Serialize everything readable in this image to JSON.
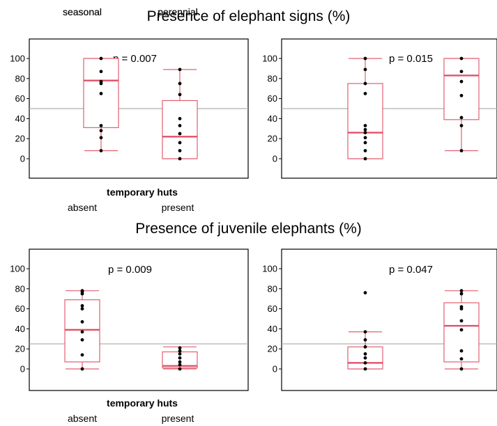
{
  "section_titles": {
    "top": "Presence of elephant signs (%)",
    "bottom": "Presence of juvenile elephants (%)"
  },
  "colors": {
    "box": "#e06070",
    "median": "#e0506a",
    "points": "#000000",
    "frame": "#000000",
    "reference_line": "#b0b0b0"
  },
  "chart_data": [
    {
      "type": "box",
      "group_label": "temporary huts",
      "categories": [
        "absent",
        "present"
      ],
      "p_label": "p = 0.007",
      "yticks": [
        0,
        20,
        40,
        60,
        80,
        100
      ],
      "ylim": [
        -20,
        120
      ],
      "reference_line": 50,
      "boxes": [
        {
          "q1": 31,
          "median": 78,
          "q3": 100,
          "whisker_low": 8,
          "whisker_high": 100,
          "points": [
            8,
            21,
            28,
            33,
            65,
            75,
            77,
            87,
            100
          ]
        },
        {
          "q1": 0,
          "median": 22,
          "q3": 58,
          "whisker_low": 0,
          "whisker_high": 89,
          "points": [
            0,
            8,
            16,
            25,
            33,
            40,
            64,
            75,
            89
          ]
        }
      ]
    },
    {
      "type": "box",
      "group_label": "",
      "categories": [
        "seasonal",
        "perennial"
      ],
      "p_label": "p = 0.015",
      "yticks": [
        0,
        20,
        40,
        60,
        80,
        100
      ],
      "ylim": [
        -20,
        120
      ],
      "reference_line": 50,
      "boxes": [
        {
          "q1": 0,
          "median": 26,
          "q3": 75,
          "whisker_low": 0,
          "whisker_high": 100,
          "points": [
            0,
            8,
            16,
            21,
            26,
            29,
            33,
            65,
            75,
            89,
            100
          ]
        },
        {
          "q1": 39,
          "median": 83,
          "q3": 100,
          "whisker_low": 8,
          "whisker_high": 100,
          "points": [
            8,
            33,
            41,
            63,
            77,
            87,
            100
          ]
        }
      ]
    },
    {
      "type": "box",
      "group_label": "temporary huts",
      "categories": [
        "absent",
        "present"
      ],
      "p_label": "p = 0.009",
      "yticks": [
        0,
        20,
        40,
        60,
        80,
        100
      ],
      "ylim": [
        -20,
        120
      ],
      "reference_line": 25,
      "boxes": [
        {
          "q1": 7,
          "median": 39,
          "q3": 69,
          "whisker_low": 0,
          "whisker_high": 78,
          "points": [
            0,
            14,
            29,
            37,
            47,
            60,
            63,
            75,
            77,
            78
          ]
        },
        {
          "q1": 1,
          "median": 3,
          "q3": 17,
          "whisker_low": 0,
          "whisker_high": 22,
          "points": [
            0,
            4,
            7,
            11,
            15,
            18,
            21
          ]
        }
      ]
    },
    {
      "type": "box",
      "group_label": "",
      "categories": [
        "seasonal",
        "perennial"
      ],
      "p_label": "p = 0.047",
      "yticks": [
        0,
        20,
        40,
        60,
        80,
        100
      ],
      "ylim": [
        -20,
        120
      ],
      "reference_line": 25,
      "boxes": [
        {
          "q1": 0,
          "median": 6,
          "q3": 22,
          "whisker_low": 0,
          "whisker_high": 37,
          "points": [
            0,
            6,
            11,
            15,
            22,
            29,
            37,
            76
          ]
        },
        {
          "q1": 7,
          "median": 43,
          "q3": 66,
          "whisker_low": 0,
          "whisker_high": 78,
          "points": [
            0,
            10,
            18,
            39,
            48,
            60,
            62,
            75,
            78
          ]
        }
      ]
    }
  ],
  "footer_categories": [
    "absent",
    "present"
  ]
}
